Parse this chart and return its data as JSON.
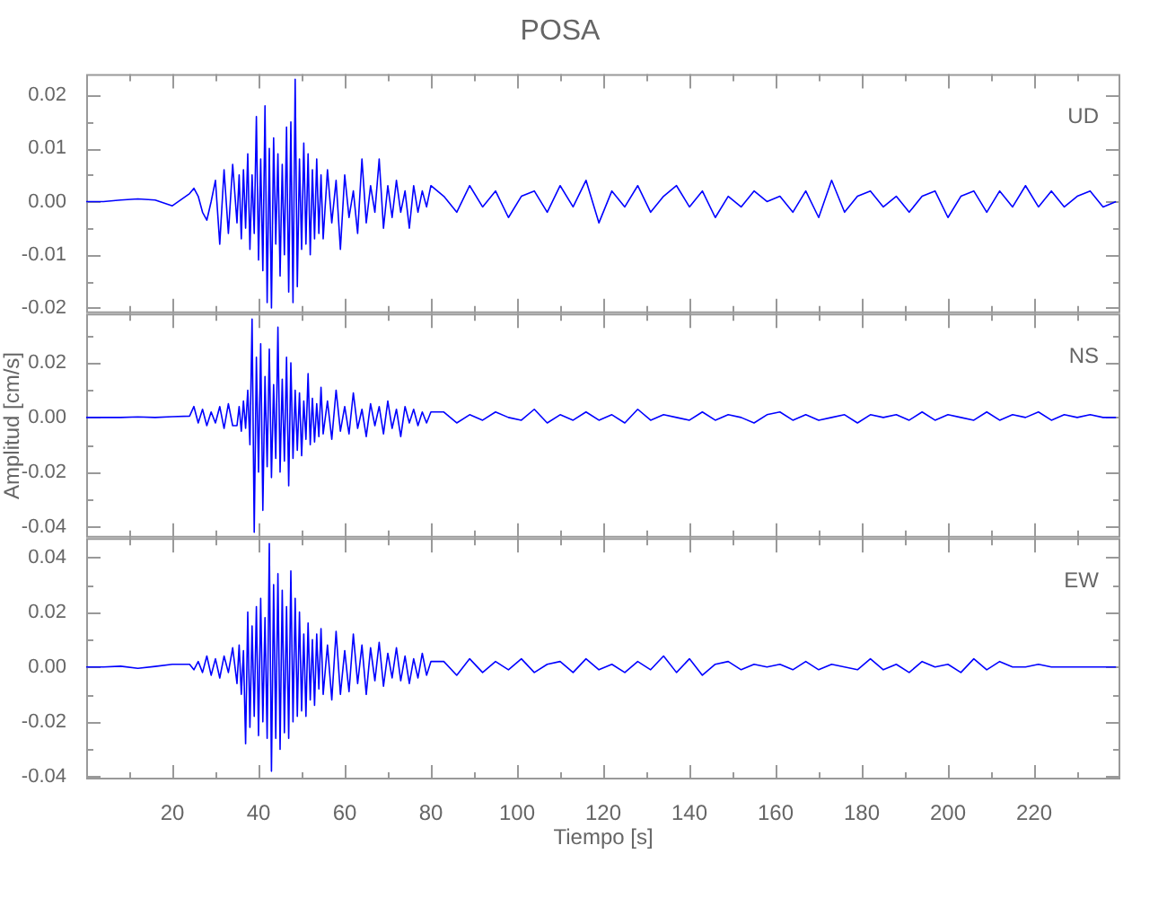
{
  "chart_data": [
    {
      "type": "line",
      "title": "POSA",
      "annotations": [
        "UD"
      ],
      "tick_labels": "y",
      "grid": false,
      "xlim": [
        0,
        240
      ],
      "xticks": [
        {
          "value": 10,
          "label": null
        },
        {
          "value": 20,
          "label": null
        },
        {
          "value": 30,
          "label": null
        },
        {
          "value": 40,
          "label": null
        },
        {
          "value": 50,
          "label": null
        },
        {
          "value": 60,
          "label": null
        },
        {
          "value": 70,
          "label": null
        },
        {
          "value": 80,
          "label": null
        },
        {
          "value": 90,
          "label": null
        },
        {
          "value": 100,
          "label": null
        },
        {
          "value": 110,
          "label": null
        },
        {
          "value": 120,
          "label": null
        },
        {
          "value": 130,
          "label": null
        },
        {
          "value": 140,
          "label": null
        },
        {
          "value": 150,
          "label": null
        },
        {
          "value": 160,
          "label": null
        },
        {
          "value": 170,
          "label": null
        },
        {
          "value": 180,
          "label": null
        },
        {
          "value": 190,
          "label": null
        },
        {
          "value": 200,
          "label": null
        },
        {
          "value": 210,
          "label": null
        },
        {
          "value": 220,
          "label": null
        },
        {
          "value": 230,
          "label": null
        }
      ],
      "ylim": [
        -0.021,
        0.024
      ],
      "yticks": [
        {
          "value": -0.02,
          "label": "-0.02"
        },
        {
          "value": -0.015,
          "label": null
        },
        {
          "value": -0.01,
          "label": "-0.01"
        },
        {
          "value": -0.005,
          "label": null
        },
        {
          "value": 0,
          "label": "0.00"
        },
        {
          "value": 0.005,
          "label": null
        },
        {
          "value": 0.01,
          "label": "0.01"
        },
        {
          "value": 0.015,
          "label": null
        },
        {
          "value": 0.02,
          "label": "0.02"
        }
      ],
      "x": [
        0,
        4,
        8,
        12,
        16,
        20,
        24,
        25,
        26,
        27,
        28,
        29,
        30,
        31,
        32,
        33,
        34,
        35,
        35.5,
        36,
        36.5,
        37,
        37.5,
        38,
        38.5,
        39,
        39.5,
        40,
        40.5,
        41,
        41.5,
        42,
        42.5,
        43,
        43.5,
        44,
        44.5,
        45,
        45.5,
        46,
        46.5,
        47,
        47.5,
        48,
        48.5,
        49,
        49.5,
        50,
        50.5,
        51,
        51.5,
        52,
        52.5,
        53,
        53.5,
        54,
        54.5,
        55,
        56,
        57,
        58,
        59,
        60,
        61,
        62,
        63,
        64,
        65,
        66,
        67,
        68,
        69,
        70,
        71,
        72,
        73,
        74,
        75,
        76,
        77,
        78,
        79,
        80,
        83,
        86,
        89,
        92,
        95,
        98,
        101,
        104,
        107,
        110,
        113,
        116,
        119,
        122,
        125,
        128,
        131,
        134,
        137,
        140,
        143,
        146,
        149,
        152,
        155,
        158,
        161,
        164,
        167,
        170,
        173,
        176,
        179,
        182,
        185,
        188,
        191,
        194,
        197,
        200,
        203,
        206,
        209,
        212,
        215,
        218,
        221,
        224,
        227,
        230,
        233,
        236,
        239
      ],
      "series": [
        {
          "color": "#0000ff",
          "values": [
            0,
            0,
            0.0003,
            0.0005,
            0.0003,
            -0.0008,
            0.0015,
            0.0025,
            0.001,
            -0.002,
            -0.0035,
            0,
            0.004,
            -0.008,
            0.006,
            -0.006,
            0.007,
            -0.004,
            0.005,
            -0.007,
            0.006,
            -0.005,
            0.009,
            -0.009,
            0.005,
            -0.006,
            0.016,
            -0.011,
            0.008,
            -0.013,
            0.018,
            -0.019,
            0.01,
            -0.02,
            0.012,
            -0.008,
            0.009,
            -0.014,
            0.007,
            -0.01,
            0.014,
            -0.017,
            0.015,
            -0.019,
            0.023,
            -0.016,
            0.008,
            -0.009,
            0.011,
            -0.008,
            0.009,
            -0.01,
            0.006,
            -0.007,
            0.008,
            -0.006,
            0.005,
            -0.007,
            0.006,
            -0.004,
            0.004,
            -0.009,
            0.005,
            -0.003,
            0.002,
            -0.006,
            0.008,
            -0.004,
            0.003,
            -0.002,
            0.008,
            -0.005,
            0.003,
            -0.003,
            0.004,
            -0.002,
            0.002,
            -0.005,
            0.003,
            -0.002,
            0.002,
            -0.001,
            0.003,
            0.001,
            -0.002,
            0.003,
            -0.001,
            0.002,
            -0.003,
            0.001,
            0.002,
            -0.002,
            0.003,
            -0.001,
            0.004,
            -0.004,
            0.002,
            -0.001,
            0.003,
            -0.002,
            0.001,
            0.003,
            -0.001,
            0.002,
            -0.003,
            0.001,
            -0.001,
            0.002,
            0,
            0.001,
            -0.002,
            0.002,
            -0.003,
            0.004,
            -0.002,
            0.001,
            0.002,
            -0.001,
            0.001,
            -0.002,
            0.001,
            0.002,
            -0.003,
            0.001,
            0.002,
            -0.002,
            0.002,
            -0.001,
            0.003,
            -0.001,
            0.002,
            -0.001,
            0.001,
            0.002,
            -0.001,
            0
          ]
        }
      ]
    },
    {
      "type": "line",
      "ylabel": "Amplitud [cm/s]",
      "annotations": [
        "NS"
      ],
      "tick_labels": "y",
      "grid": false,
      "xlim": [
        0,
        240
      ],
      "xticks": [
        {
          "value": 10,
          "label": null
        },
        {
          "value": 20,
          "label": null
        },
        {
          "value": 30,
          "label": null
        },
        {
          "value": 40,
          "label": null
        },
        {
          "value": 50,
          "label": null
        },
        {
          "value": 60,
          "label": null
        },
        {
          "value": 70,
          "label": null
        },
        {
          "value": 80,
          "label": null
        },
        {
          "value": 90,
          "label": null
        },
        {
          "value": 100,
          "label": null
        },
        {
          "value": 110,
          "label": null
        },
        {
          "value": 120,
          "label": null
        },
        {
          "value": 130,
          "label": null
        },
        {
          "value": 140,
          "label": null
        },
        {
          "value": 150,
          "label": null
        },
        {
          "value": 160,
          "label": null
        },
        {
          "value": 170,
          "label": null
        },
        {
          "value": 180,
          "label": null
        },
        {
          "value": 190,
          "label": null
        },
        {
          "value": 200,
          "label": null
        },
        {
          "value": 210,
          "label": null
        },
        {
          "value": 220,
          "label": null
        },
        {
          "value": 230,
          "label": null
        }
      ],
      "ylim": [
        -0.044,
        0.038
      ],
      "yticks": [
        {
          "value": -0.04,
          "label": "-0.04"
        },
        {
          "value": -0.03,
          "label": null
        },
        {
          "value": -0.02,
          "label": "-0.02"
        },
        {
          "value": -0.01,
          "label": null
        },
        {
          "value": 0,
          "label": "0.00"
        },
        {
          "value": 0.01,
          "label": null
        },
        {
          "value": 0.02,
          "label": "0.02"
        },
        {
          "value": 0.03,
          "label": null
        }
      ],
      "x": [
        0,
        4,
        8,
        12,
        16,
        20,
        24,
        25,
        26,
        27,
        28,
        29,
        30,
        31,
        32,
        33,
        34,
        35,
        35.5,
        36,
        36.5,
        37,
        37.5,
        38,
        38.5,
        39,
        39.5,
        40,
        40.5,
        41,
        41.5,
        42,
        42.5,
        43,
        43.5,
        44,
        44.5,
        45,
        45.5,
        46,
        46.5,
        47,
        47.5,
        48,
        48.5,
        49,
        49.5,
        50,
        50.5,
        51,
        51.5,
        52,
        52.5,
        53,
        53.5,
        54,
        54.5,
        55,
        56,
        57,
        58,
        59,
        60,
        61,
        62,
        63,
        64,
        65,
        66,
        67,
        68,
        69,
        70,
        71,
        72,
        73,
        74,
        75,
        76,
        77,
        78,
        79,
        80,
        83,
        86,
        89,
        92,
        95,
        98,
        101,
        104,
        107,
        110,
        113,
        116,
        119,
        122,
        125,
        128,
        131,
        134,
        137,
        140,
        143,
        146,
        149,
        152,
        155,
        158,
        161,
        164,
        167,
        170,
        173,
        176,
        179,
        182,
        185,
        188,
        191,
        194,
        197,
        200,
        203,
        206,
        209,
        212,
        215,
        218,
        221,
        224,
        227,
        230,
        233,
        236,
        239
      ],
      "series": [
        {
          "color": "#0000ff",
          "values": [
            0,
            0,
            0,
            0.0002,
            0,
            0.0003,
            0.0005,
            0.004,
            -0.002,
            0.003,
            -0.003,
            0.002,
            -0.002,
            0.004,
            -0.004,
            0.005,
            -0.003,
            -0.003,
            0.004,
            -0.005,
            0.006,
            -0.004,
            0.01,
            -0.01,
            0.036,
            -0.042,
            0.022,
            -0.02,
            0.027,
            -0.034,
            0.015,
            -0.018,
            0.025,
            -0.022,
            0.012,
            -0.015,
            0.033,
            -0.02,
            0.014,
            -0.016,
            0.022,
            -0.025,
            0.02,
            -0.015,
            0.01,
            -0.012,
            0.009,
            -0.014,
            0.006,
            -0.008,
            0.016,
            -0.01,
            0.007,
            -0.009,
            0.005,
            -0.007,
            0.011,
            -0.006,
            0.006,
            -0.008,
            0.01,
            -0.005,
            0.004,
            -0.006,
            0.009,
            -0.004,
            0.003,
            -0.007,
            0.005,
            -0.003,
            0.004,
            -0.006,
            0.006,
            -0.004,
            0.003,
            -0.007,
            0.004,
            -0.002,
            0.003,
            -0.003,
            0.002,
            -0.002,
            0.002,
            0.002,
            -0.002,
            0.001,
            -0.001,
            0.002,
            0,
            -0.001,
            0.003,
            -0.002,
            0.001,
            -0.001,
            0.002,
            -0.001,
            0.001,
            -0.002,
            0.003,
            -0.001,
            0.001,
            0,
            -0.001,
            0.002,
            -0.001,
            0.001,
            0,
            -0.002,
            0.001,
            0.002,
            -0.001,
            0.001,
            -0.001,
            0,
            0.001,
            -0.002,
            0.001,
            0,
            0.001,
            -0.001,
            0.002,
            -0.001,
            0.001,
            0,
            -0.001,
            0.002,
            -0.001,
            0.001,
            0,
            0.002,
            -0.001,
            0.001,
            0,
            0.001,
            0,
            0
          ]
        }
      ]
    },
    {
      "type": "line",
      "xlabel": "Tiempo [s]",
      "annotations": [
        "EW"
      ],
      "grid": false,
      "xlim": [
        0,
        240
      ],
      "xticks": [
        {
          "value": 10,
          "label": null
        },
        {
          "value": 20,
          "label": "20"
        },
        {
          "value": 30,
          "label": null
        },
        {
          "value": 40,
          "label": "40"
        },
        {
          "value": 50,
          "label": null
        },
        {
          "value": 60,
          "label": "60"
        },
        {
          "value": 70,
          "label": null
        },
        {
          "value": 80,
          "label": "80"
        },
        {
          "value": 90,
          "label": null
        },
        {
          "value": 100,
          "label": "100"
        },
        {
          "value": 110,
          "label": null
        },
        {
          "value": 120,
          "label": "120"
        },
        {
          "value": 130,
          "label": null
        },
        {
          "value": 140,
          "label": "140"
        },
        {
          "value": 150,
          "label": null
        },
        {
          "value": 160,
          "label": "160"
        },
        {
          "value": 170,
          "label": null
        },
        {
          "value": 180,
          "label": "180"
        },
        {
          "value": 190,
          "label": null
        },
        {
          "value": 200,
          "label": "200"
        },
        {
          "value": 210,
          "label": null
        },
        {
          "value": 220,
          "label": "220"
        },
        {
          "value": 230,
          "label": null
        }
      ],
      "ylim": [
        -0.041,
        0.047
      ],
      "yticks": [
        {
          "value": -0.04,
          "label": "-0.04"
        },
        {
          "value": -0.03,
          "label": null
        },
        {
          "value": -0.02,
          "label": "-0.02"
        },
        {
          "value": -0.01,
          "label": null
        },
        {
          "value": 0,
          "label": "0.00"
        },
        {
          "value": 0.01,
          "label": null
        },
        {
          "value": 0.02,
          "label": "0.02"
        },
        {
          "value": 0.03,
          "label": null
        },
        {
          "value": 0.04,
          "label": "0.04"
        }
      ],
      "x": [
        0,
        4,
        8,
        12,
        16,
        20,
        24,
        25,
        26,
        27,
        28,
        29,
        30,
        31,
        32,
        33,
        34,
        35,
        35.5,
        36,
        36.5,
        37,
        37.5,
        38,
        38.5,
        39,
        39.5,
        40,
        40.5,
        41,
        41.5,
        42,
        42.5,
        43,
        43.5,
        44,
        44.5,
        45,
        45.5,
        46,
        46.5,
        47,
        47.5,
        48,
        48.5,
        49,
        49.5,
        50,
        50.5,
        51,
        51.5,
        52,
        52.5,
        53,
        53.5,
        54,
        54.5,
        55,
        56,
        57,
        58,
        59,
        60,
        61,
        62,
        63,
        64,
        65,
        66,
        67,
        68,
        69,
        70,
        71,
        72,
        73,
        74,
        75,
        76,
        77,
        78,
        79,
        80,
        83,
        86,
        89,
        92,
        95,
        98,
        101,
        104,
        107,
        110,
        113,
        116,
        119,
        122,
        125,
        128,
        131,
        134,
        137,
        140,
        143,
        146,
        149,
        152,
        155,
        158,
        161,
        164,
        167,
        170,
        173,
        176,
        179,
        182,
        185,
        188,
        191,
        194,
        197,
        200,
        203,
        206,
        209,
        212,
        215,
        218,
        221,
        224,
        227,
        230,
        233,
        236,
        239
      ],
      "series": [
        {
          "color": "#0000ff",
          "values": [
            0,
            0,
            0.0003,
            -0.0005,
            0.0002,
            0.001,
            0.001,
            -0.001,
            0.002,
            -0.002,
            0.004,
            -0.003,
            0.003,
            -0.004,
            0.004,
            -0.002,
            0.007,
            -0.006,
            0.008,
            -0.01,
            0.006,
            -0.028,
            0.02,
            -0.022,
            0.015,
            -0.018,
            0.022,
            -0.025,
            0.025,
            -0.02,
            0.018,
            -0.026,
            0.045,
            -0.038,
            0.03,
            -0.026,
            0.034,
            -0.03,
            0.028,
            -0.024,
            0.022,
            -0.026,
            0.035,
            -0.02,
            0.025,
            -0.018,
            0.02,
            -0.016,
            0.012,
            -0.018,
            0.016,
            -0.012,
            0.01,
            -0.014,
            0.012,
            -0.008,
            0.014,
            -0.01,
            0.008,
            -0.012,
            0.013,
            -0.01,
            0.006,
            -0.009,
            0.012,
            -0.006,
            0.008,
            -0.01,
            0.007,
            -0.005,
            0.009,
            -0.007,
            0.005,
            -0.004,
            0.007,
            -0.005,
            0.004,
            -0.006,
            0.003,
            -0.004,
            0.005,
            -0.003,
            0.002,
            0.002,
            -0.003,
            0.003,
            -0.002,
            0.002,
            -0.001,
            0.003,
            -0.002,
            0.001,
            0.002,
            -0.002,
            0.003,
            -0.001,
            0.001,
            -0.002,
            0.002,
            -0.001,
            0.004,
            -0.002,
            0.003,
            -0.003,
            0.001,
            0.002,
            -0.001,
            0.001,
            0,
            0.001,
            -0.001,
            0.002,
            -0.001,
            0.001,
            0,
            -0.001,
            0.003,
            -0.001,
            0.001,
            -0.002,
            0.002,
            0,
            0.001,
            -0.002,
            0.003,
            -0.001,
            0.002,
            0,
            0,
            0.001,
            0,
            0,
            0,
            0,
            0,
            0
          ]
        }
      ]
    }
  ]
}
